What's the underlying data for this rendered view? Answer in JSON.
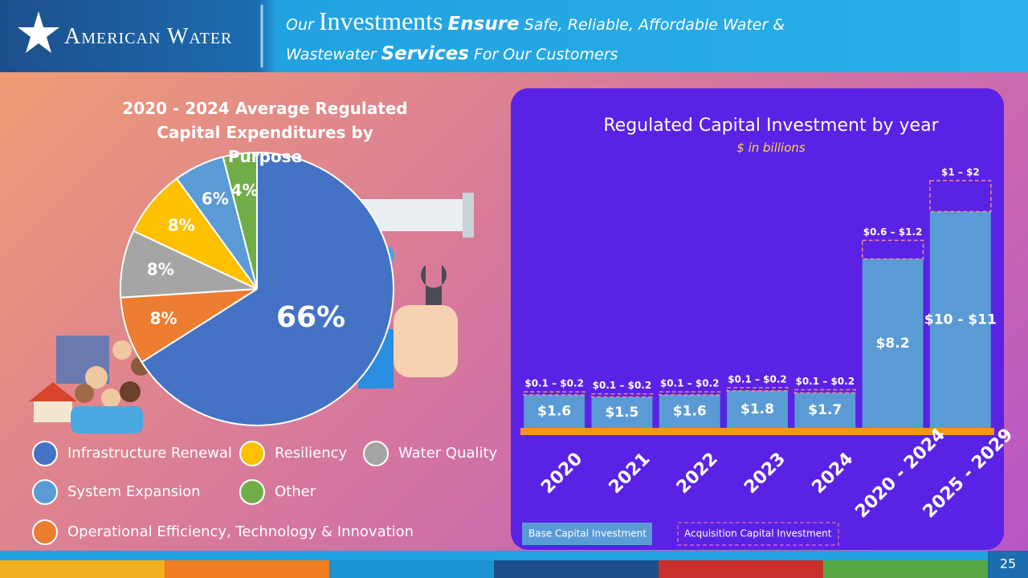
{
  "header": {
    "logo": "American Water",
    "title": [
      "Our",
      "Investments",
      "Ensure",
      "Safe, Reliable, Affordable Water &",
      "Wastewater",
      "Services",
      "For Our Customers"
    ]
  },
  "chart_data": [
    {
      "type": "pie",
      "title": "2020 - 2024 Average Regulated Capital Expenditures by Purpose",
      "categories": [
        "Infrastructure Renewal",
        "Operational Efficiency, Technology & Innovation",
        "Water Quality",
        "Resiliency",
        "System Expansion",
        "Other"
      ],
      "values": [
        66,
        8,
        8,
        8,
        6,
        4
      ],
      "value_labels": [
        "66%",
        "8%",
        "8%",
        "8%",
        "6%",
        "4%"
      ],
      "colors": [
        "#4472c4",
        "#ed7d31",
        "#a5a5a5",
        "#ffc000",
        "#5b9bd5",
        "#70ad47"
      ]
    },
    {
      "type": "bar",
      "stacked": true,
      "title": "Regulated Capital Investment by year",
      "subtitle": "$ in billions",
      "categories": [
        "2020",
        "2021",
        "2022",
        "2023",
        "2024",
        "2020 - 2024",
        "2025 - 2029"
      ],
      "series": [
        {
          "name": "Base Capital Investment",
          "color": "#5b9bd5",
          "values": [
            1.6,
            1.5,
            1.6,
            1.8,
            1.7,
            8.2,
            10.5
          ],
          "value_labels": [
            "$1.6",
            "$1.5",
            "$1.6",
            "$1.8",
            "$1.7",
            "$8.2",
            "$10 - $11"
          ]
        },
        {
          "name": "Acquisition Capital Investment",
          "color": "#f28c8c",
          "style": "dashed",
          "values": [
            0.15,
            0.15,
            0.15,
            0.15,
            0.15,
            0.9,
            1.5
          ],
          "value_labels": [
            "$0.1 – $0.2",
            "$0.1 – $0.2",
            "$0.1 – $0.2",
            "$0.1 – $0.2",
            "$0.1 – $0.2",
            "$0.6 – $1.2",
            "$1 – $2"
          ]
        }
      ]
    }
  ],
  "page_number": 25
}
